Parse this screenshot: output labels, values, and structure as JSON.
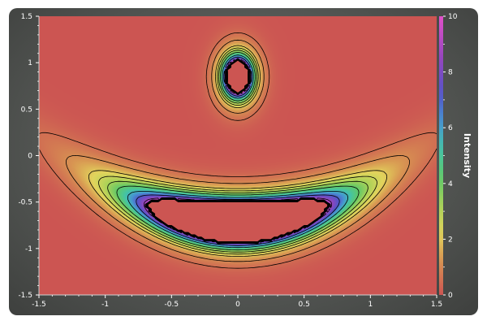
{
  "chart_data": {
    "type": "heatmap",
    "plot_style": "filled density with contour lines",
    "title": "",
    "xlabel": "",
    "ylabel": "",
    "xlim": [
      -1.5,
      1.5
    ],
    "ylim": [
      -1.5,
      1.5
    ],
    "x_ticks": [
      -1.5,
      -1,
      -0.5,
      0,
      0.5,
      1,
      1.5
    ],
    "y_ticks": [
      -1.5,
      -1,
      -0.5,
      0,
      0.5,
      1,
      1.5
    ],
    "grid": false,
    "colorbar": {
      "title": "Intensity",
      "range": [
        0,
        10
      ],
      "ticks": [
        0,
        2,
        4,
        6,
        8,
        10
      ],
      "colormap": "red-yellow-green-cyan-blue-purple-magenta"
    },
    "field_model": {
      "description": "Two dense low-value cores (approx 0) surrounded by high-intensity rings fading outward",
      "top_core": {
        "center": [
          0.0,
          0.85
        ],
        "semi_axes": [
          0.09,
          0.18
        ]
      },
      "bottom_core": {
        "center": [
          0.0,
          -0.72
        ],
        "semi_axes": [
          0.68,
          0.22
        ],
        "arch": 0.18
      }
    },
    "contour_levels": [
      0.5,
      1.1,
      2,
      2.6,
      3.3,
      4.2,
      5.6,
      7,
      8.6
    ]
  }
}
